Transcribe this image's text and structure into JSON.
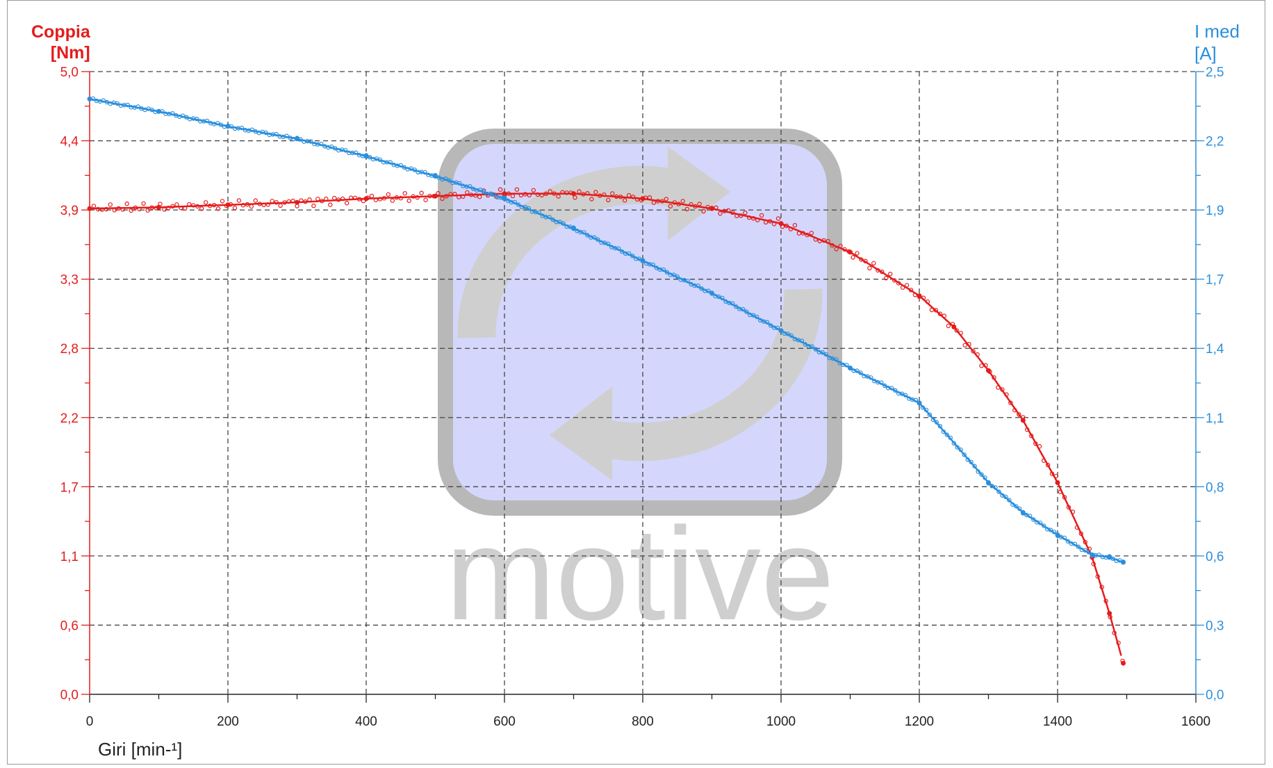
{
  "chart_data": {
    "type": "scatter",
    "title": "",
    "watermark": "motive",
    "xlabel": "Giri [min-¹]",
    "xlim": [
      0,
      1600
    ],
    "x_ticks": [
      "0",
      "200",
      "400",
      "600",
      "800",
      "1000",
      "1200",
      "1400",
      "1600"
    ],
    "y_left": {
      "label_line1": "Coppia",
      "label_line2": "[Nm]",
      "ylim": [
        0,
        5
      ],
      "ticks": [
        "0,0",
        "0,6",
        "1,1",
        "1,7",
        "2,2",
        "2,8",
        "3,3",
        "3,9",
        "4,4",
        "5,0"
      ],
      "color": "#e41c1c"
    },
    "y_right": {
      "label_line1": "I med",
      "label_line2": "[A]",
      "ylim": [
        0,
        2.5
      ],
      "ticks": [
        "0,0",
        "0,3",
        "0,6",
        "0,8",
        "1,1",
        "1,4",
        "1,7",
        "1,9",
        "2,2",
        "2,5"
      ],
      "color": "#2b8fdc"
    },
    "grid": true,
    "legend": "none",
    "series": [
      {
        "axis": "left",
        "color": "#e41c1c",
        "x": [
          0,
          100,
          200,
          300,
          400,
          500,
          600,
          700,
          800,
          900,
          1000,
          1100,
          1200,
          1250,
          1300,
          1350,
          1400,
          1450,
          1475,
          1495
        ],
        "y": [
          3.9,
          3.91,
          3.93,
          3.95,
          3.98,
          4.0,
          4.02,
          4.02,
          3.98,
          3.9,
          3.78,
          3.55,
          3.2,
          2.95,
          2.6,
          2.2,
          1.7,
          1.1,
          0.65,
          0.25
        ]
      },
      {
        "axis": "right",
        "color": "#2b8fdc",
        "x": [
          0,
          100,
          200,
          300,
          400,
          500,
          600,
          700,
          800,
          900,
          1000,
          1100,
          1200,
          1300,
          1350,
          1400,
          1450,
          1475,
          1495
        ],
        "y": [
          2.39,
          2.34,
          2.28,
          2.23,
          2.16,
          2.08,
          1.99,
          1.87,
          1.74,
          1.61,
          1.46,
          1.31,
          1.17,
          0.85,
          0.73,
          0.64,
          0.56,
          0.55,
          0.53
        ]
      }
    ]
  }
}
